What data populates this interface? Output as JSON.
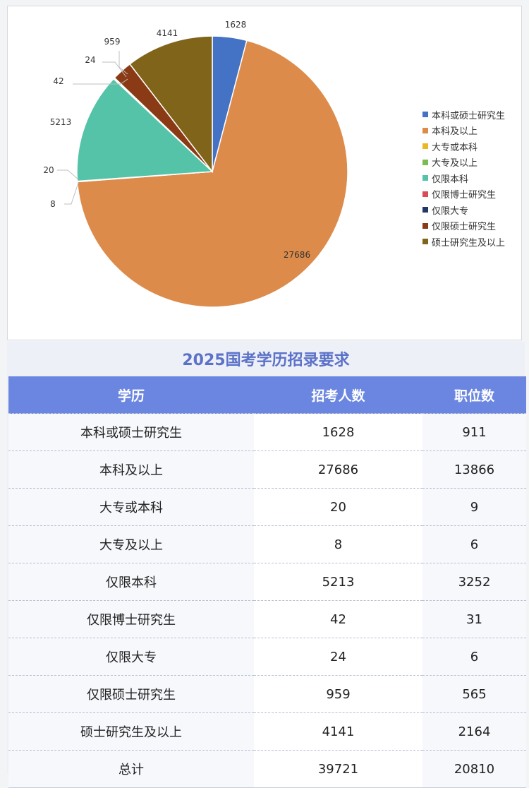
{
  "chart_data": {
    "type": "pie",
    "slices": [
      {
        "name": "本科或硕士研究生",
        "value": 1628,
        "color": "#4472c4"
      },
      {
        "name": "本科及以上",
        "value": 27686,
        "color": "#dd8b4a"
      },
      {
        "name": "大专或本科",
        "value": 20,
        "color": "#e7b924"
      },
      {
        "name": "大专及以上",
        "value": 8,
        "color": "#7cba52"
      },
      {
        "name": "仅限本科",
        "value": 5213,
        "color": "#55c3a8"
      },
      {
        "name": "仅限博士研究生",
        "value": 42,
        "color": "#d94c56"
      },
      {
        "name": "仅限大专",
        "value": 24,
        "color": "#203864"
      },
      {
        "name": "仅限硕士研究生",
        "value": 959,
        "color": "#8a3a15"
      },
      {
        "name": "硕士研究生及以上",
        "value": 4141,
        "color": "#7f6419"
      }
    ],
    "legend_position": "right"
  },
  "table": {
    "title": "2025国考学历招录要求",
    "headers": [
      "学历",
      "招考人数",
      "职位数"
    ],
    "rows": [
      [
        "本科或硕士研究生",
        "1628",
        "911"
      ],
      [
        "本科及以上",
        "27686",
        "13866"
      ],
      [
        "大专或本科",
        "20",
        "9"
      ],
      [
        "大专及以上",
        "8",
        "6"
      ],
      [
        "仅限本科",
        "5213",
        "3252"
      ],
      [
        "仅限博士研究生",
        "42",
        "31"
      ],
      [
        "仅限大专",
        "24",
        "6"
      ],
      [
        "仅限硕士研究生",
        "959",
        "565"
      ],
      [
        "硕士研究生及以上",
        "4141",
        "2164"
      ],
      [
        "总计",
        "39721",
        "20810"
      ]
    ]
  }
}
